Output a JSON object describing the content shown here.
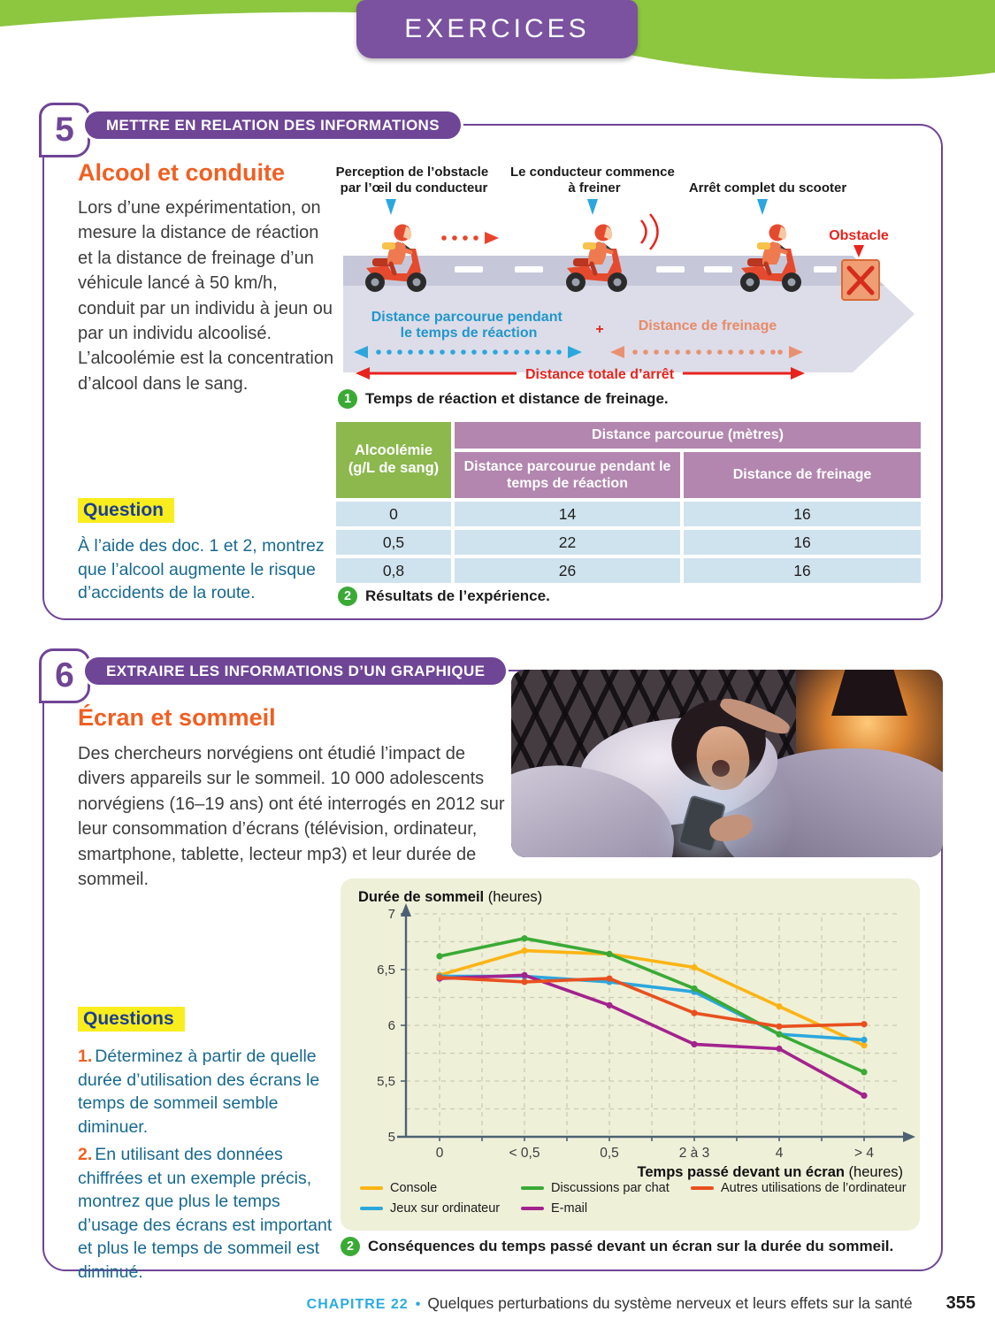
{
  "page": {
    "banner_title": "EXERCICES"
  },
  "footer": {
    "chapter": "CHAPITRE 22",
    "separator": "•",
    "title": "Quelques perturbations du système nerveux et leurs effets sur la santé",
    "page_number": "355"
  },
  "exercise5": {
    "number": "5",
    "skill": "METTRE EN RELATION DES INFORMATIONS",
    "title": "Alcool et conduite",
    "intro": "Lors d’une expérimentation, on mesure la distance de réaction et la distance de freinage d’un véhicule lancé à 50 km/h, conduit par un individu à jeun ou par un individu alcoolisé. L’alcoolémie est la concentration d’alcool dans le sang.",
    "question_label": "Question",
    "question": "À l’aide des doc. 1 et 2, montrez que l’alcool augmente le risque d’accidents de la route.",
    "diagram": {
      "label_perception_l1": "Perception de l’obstacle",
      "label_perception_l2": "par l’œil du conducteur",
      "label_brake_l1": "Le conducteur commence",
      "label_brake_l2": "à freiner",
      "label_stop": "Arrêt complet du scooter",
      "obstacle": "Obstacle",
      "dist_reaction_l1": "Distance parcourue pendant",
      "dist_reaction_l2": "le temps de réaction",
      "plus": "+",
      "dist_freinage": "Distance de freinage",
      "dist_total": "Distance totale d’arrêt",
      "caption_num": "1",
      "caption": "Temps de réaction et distance de freinage."
    },
    "table": {
      "corner_l1": "Alcoolémie",
      "corner_l2": "(g/L de sang)",
      "group_header": "Distance parcourue (mètres)",
      "col1": "Distance parcourue pendant le temps de réaction",
      "col2": "Distance de freinage",
      "rows": [
        [
          "0",
          "14",
          "16"
        ],
        [
          "0,5",
          "22",
          "16"
        ],
        [
          "0,8",
          "26",
          "16"
        ]
      ],
      "caption_num": "2",
      "caption": "Résultats de l’expérience."
    }
  },
  "exercise6": {
    "number": "6",
    "skill": "EXTRAIRE LES INFORMATIONS D’UN GRAPHIQUE",
    "title": "Écran et sommeil",
    "intro": "Des chercheurs norvégiens ont étudié l’impact de divers appareils sur le sommeil. 10 000 adolescents norvégiens (16–19 ans) ont été interrogés en 2012 sur leur consommation d’écrans (télévision, ordinateur, smartphone, tablette, lecteur mp3) et leur durée de sommeil.",
    "questions_label": "Questions",
    "q1": {
      "num": "1.",
      "text": "Déterminez à partir de quelle durée d’utilisation des écrans le temps de sommeil semble diminuer."
    },
    "q2": {
      "num": "2.",
      "text": "En utilisant des données chiffrées et un exemple précis, montrez que plus le temps d’usage des écrans est important et plus le temps de sommeil est diminué."
    }
  },
  "chart_data": {
    "type": "line",
    "title": "Durée de sommeil",
    "title_unit": "(heures)",
    "xlabel": "Temps passé devant un écran",
    "xlabel_unit": "(heures)",
    "categories": [
      "0",
      "< 0,5",
      "0,5",
      "2 à 3",
      "4",
      "> 4"
    ],
    "ylim": [
      5,
      7
    ],
    "yticks": [
      "5",
      "5,5",
      "6",
      "6,5",
      "7"
    ],
    "grid": "dashed",
    "legend_position": "bottom",
    "series": [
      {
        "name": "Console",
        "color": "#fcb415",
        "values": [
          6.45,
          6.67,
          6.64,
          6.52,
          6.17,
          5.82
        ]
      },
      {
        "name": "Jeux sur ordinateur",
        "color": "#2ba7de",
        "values": [
          6.44,
          6.44,
          6.39,
          6.3,
          5.92,
          5.87
        ]
      },
      {
        "name": "Discussions par chat",
        "color": "#3aaa35",
        "values": [
          6.62,
          6.78,
          6.64,
          6.33,
          5.92,
          5.58
        ]
      },
      {
        "name": "E-mail",
        "color": "#a3238e",
        "values": [
          6.42,
          6.45,
          6.18,
          5.83,
          5.79,
          5.37
        ]
      },
      {
        "name": "Autres utilisations de l’ordinateur",
        "color": "#e8501e",
        "values": [
          6.43,
          6.39,
          6.42,
          6.11,
          5.99,
          6.01
        ]
      }
    ],
    "legend_rows": [
      [
        "Console",
        "Discussions par chat",
        "Autres utilisations de l’ordinateur"
      ],
      [
        "Jeux sur ordinateur",
        "E-mail"
      ]
    ],
    "caption_num": "2",
    "caption": "Conséquences du temps passé devant un écran sur la durée du sommeil."
  }
}
